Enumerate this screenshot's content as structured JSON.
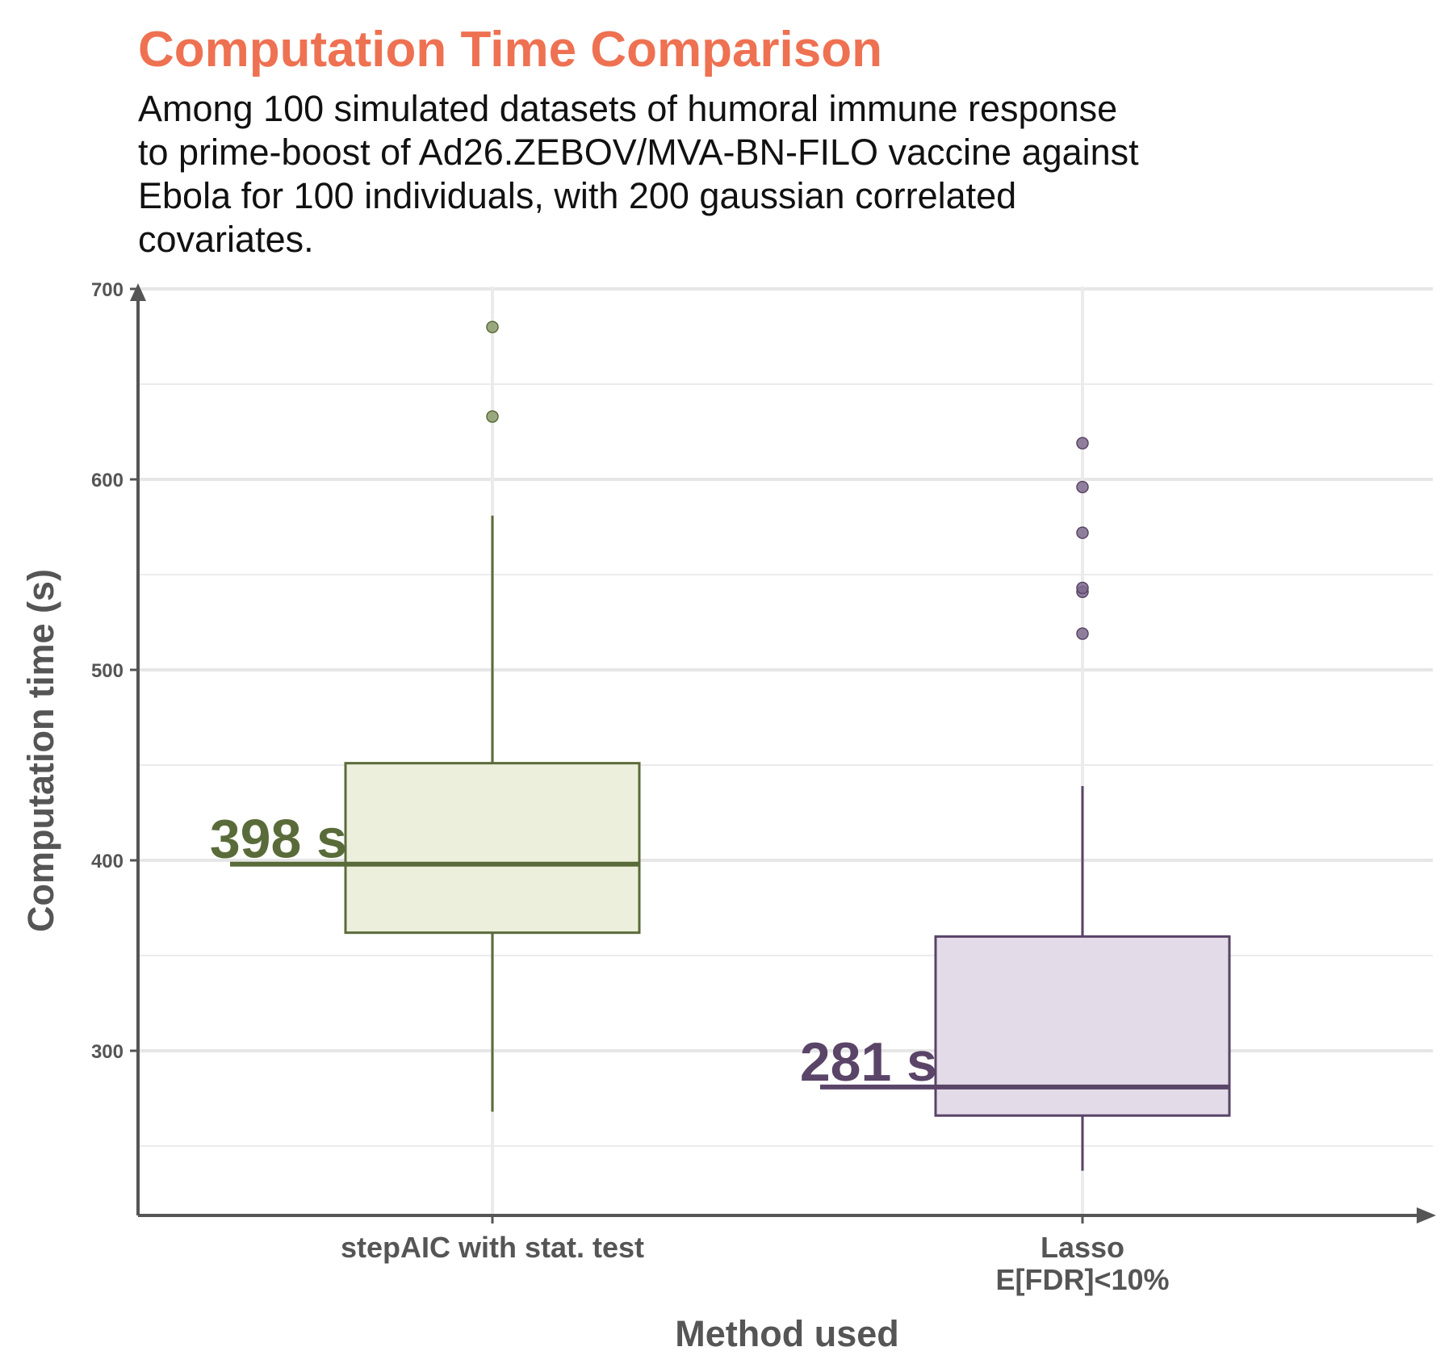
{
  "chart_data": {
    "type": "boxplot",
    "title": "Computation Time Comparison",
    "subtitle": "Among 100 simulated datasets of humoral immune response\nto prime-boost of Ad26.ZEBOV/MVA-BN-FILO vaccine against\nEbola for 100 individuals, with 200 gaussian correlated\ncovariates.",
    "xlabel": "Method used",
    "ylabel": "Computation time (s)",
    "ylim": [
      213,
      700
    ],
    "yticks": [
      300,
      400,
      500,
      600,
      700
    ],
    "grid": true,
    "title_color": "#EE7152",
    "series": [
      {
        "category": "stepAIC with stat. test",
        "min": 268,
        "q1": 362,
        "median": 398,
        "q3": 451,
        "max": 581,
        "outliers": [
          633,
          680
        ],
        "median_label": "398 s",
        "stroke": "#5A6B3A",
        "fill": "#ECEFDC",
        "point_color": "#8A9A6A"
      },
      {
        "category": "Lasso\nE[FDR]<10%",
        "min": 237,
        "q1": 266,
        "median": 281,
        "q3": 360,
        "max": 439,
        "outliers": [
          519,
          541,
          543,
          572,
          596,
          619
        ],
        "median_label": "281 s",
        "stroke": "#5A4468",
        "fill": "#E3DBE8",
        "point_color": "#7E6A8C"
      }
    ]
  }
}
